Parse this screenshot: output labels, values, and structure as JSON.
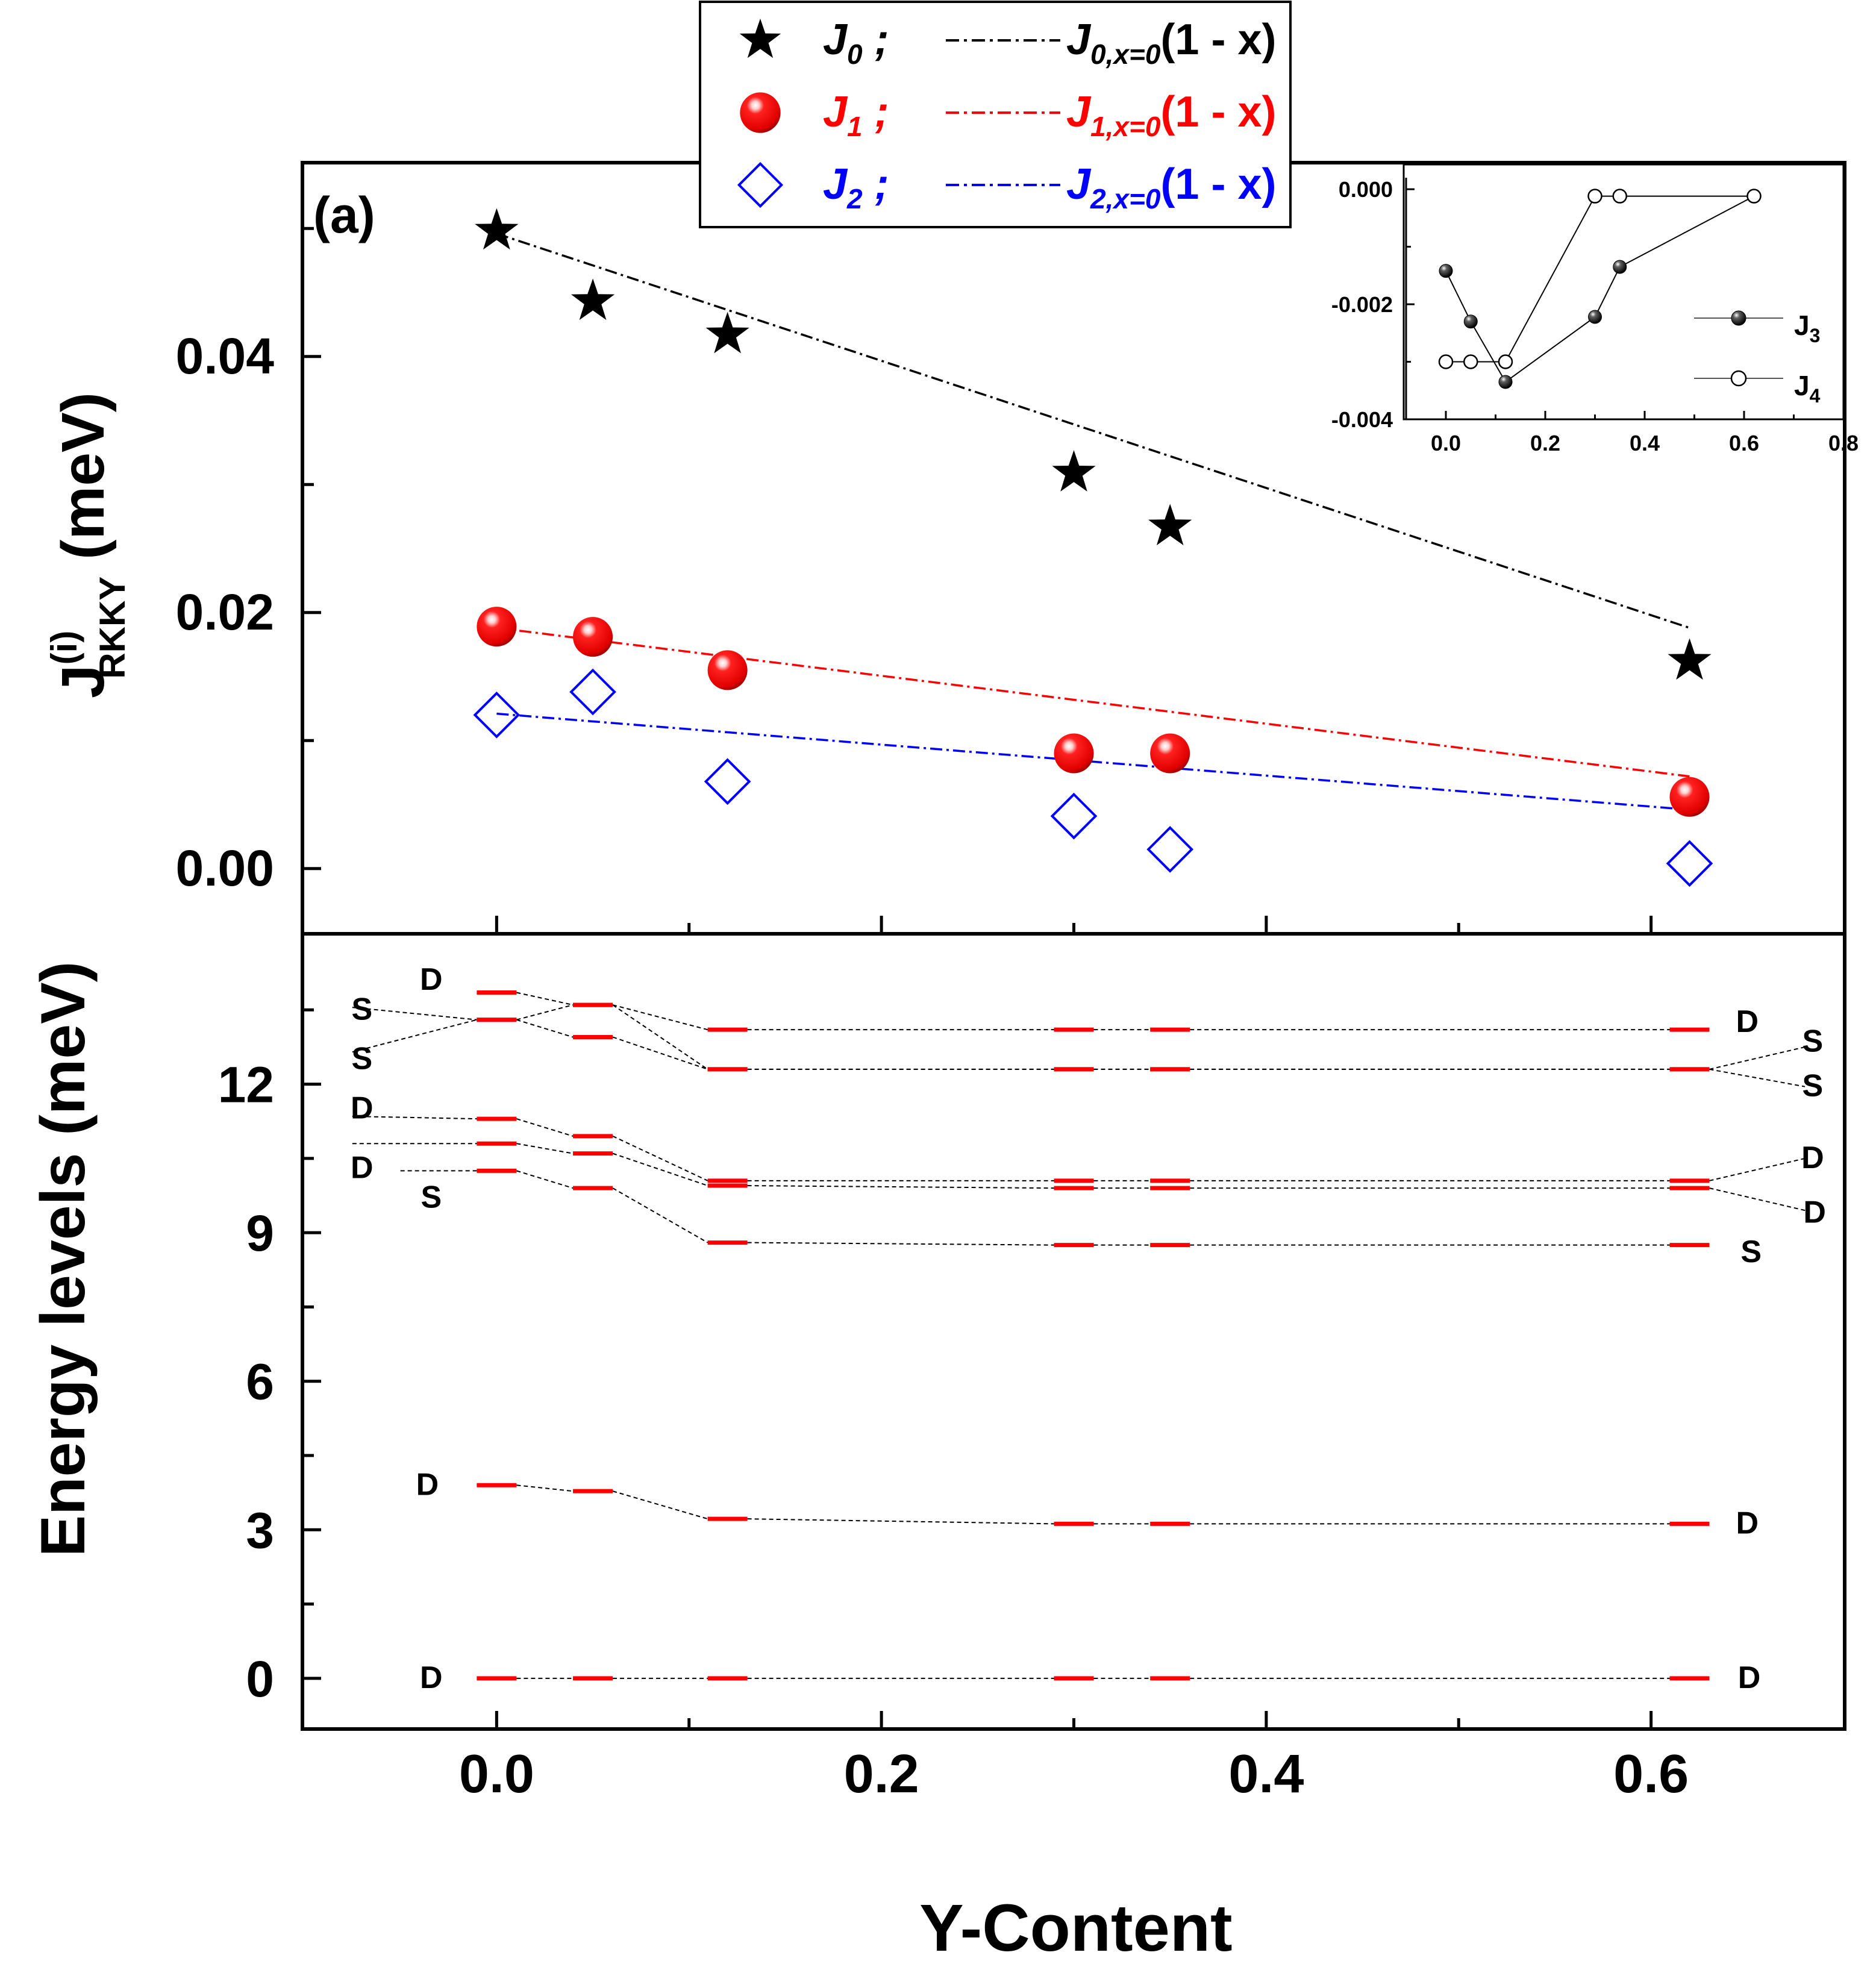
{
  "chart_data": [
    {
      "type": "scatter",
      "panel_label": "(a)",
      "title": "",
      "xlabel": "Y-Content",
      "ylabel_main": "J",
      "ylabel_sup": "(i)",
      "ylabel_sub": "RKKY",
      "ylabel_unit": " (meV)",
      "xlim": [
        -0.1,
        0.7
      ],
      "ylim": [
        -0.005,
        0.055
      ],
      "xticks": [
        0.0,
        0.2,
        0.4,
        0.6
      ],
      "yticks": [
        0.0,
        0.02,
        0.04
      ],
      "ytick_labels": [
        "0.00",
        "0.02",
        "0.04"
      ],
      "x": [
        0.0,
        0.05,
        0.12,
        0.3,
        0.35,
        0.62
      ],
      "series": [
        {
          "name": "J",
          "sub": "0",
          "marker": "star",
          "color": "#000000",
          "values": [
            0.0498,
            0.0443,
            0.0417,
            0.0309,
            0.0267,
            0.0162
          ]
        },
        {
          "name": "J",
          "sub": "1",
          "marker": "sphere",
          "color": "#ff0000",
          "values": [
            0.0189,
            0.0181,
            0.0155,
            0.009,
            0.009,
            0.0056
          ]
        },
        {
          "name": "J",
          "sub": "2",
          "marker": "diamond",
          "color": "#0000ff",
          "values": [
            0.012,
            0.0138,
            0.0068,
            0.0041,
            0.0015,
            0.0004
          ]
        }
      ],
      "fits": [
        {
          "series": 0,
          "x_range": [
            0.0,
            0.62
          ],
          "values": [
            0.0496,
            0.0188
          ],
          "color": "#000000"
        },
        {
          "series": 1,
          "x_range": [
            0.0,
            0.62
          ],
          "values": [
            0.0188,
            0.0072
          ],
          "color": "#ff0000"
        },
        {
          "series": 2,
          "x_range": [
            0.0,
            0.62
          ],
          "values": [
            0.0121,
            0.0046
          ],
          "color": "#0000ff"
        }
      ],
      "legend": {
        "placement": "top-center",
        "entries": [
          {
            "marker_label": "J",
            "marker_sub": "0",
            "separator": ";",
            "fit_label": "J",
            "fit_sub": "0,x=0",
            "fit_tail": "(1 - x)",
            "color": "#000000"
          },
          {
            "marker_label": "J",
            "marker_sub": "1",
            "separator": ";",
            "fit_label": "J",
            "fit_sub": "1,x=0",
            "fit_tail": "(1 - x)",
            "color": "#ff0000"
          },
          {
            "marker_label": "J",
            "marker_sub": "2",
            "separator": ";",
            "fit_label": "J",
            "fit_sub": "2,x=0",
            "fit_tail": "(1 - x)",
            "color": "#0000ff"
          }
        ]
      }
    },
    {
      "type": "line",
      "role": "inset",
      "xlim": [
        -0.08,
        0.8
      ],
      "ylim": [
        -0.004,
        0.0002
      ],
      "xticks": [
        0.0,
        0.2,
        0.4,
        0.6,
        0.8
      ],
      "xtick_labels": [
        "0.0",
        "0.2",
        "0.4",
        "0.6",
        "0.8"
      ],
      "yticks": [
        0.0,
        -0.002,
        -0.004
      ],
      "ytick_labels": [
        "0.000",
        "-0.002",
        "-0.004"
      ],
      "series": [
        {
          "name": "J",
          "sub": "3",
          "marker": "filled-circle",
          "x": [
            0.0,
            0.05,
            0.12,
            0.3,
            0.35,
            0.62
          ],
          "values": [
            -0.00142,
            -0.0023,
            -0.00335,
            -0.00222,
            -0.00135,
            -0.00012
          ]
        },
        {
          "name": "J",
          "sub": "4",
          "marker": "open-circle",
          "x": [
            0.0,
            0.05,
            0.12,
            0.3,
            0.35,
            0.62
          ],
          "values": [
            -0.003,
            -0.003,
            -0.003,
            -0.00012,
            -0.00012,
            -0.00012
          ]
        }
      ],
      "legend": {
        "placement": "right"
      }
    },
    {
      "type": "levels",
      "ylabel": "Energy levels (meV)",
      "xlabel": "Y-Content",
      "xlim": [
        -0.1,
        0.7
      ],
      "ylim": [
        -1.0,
        15.0
      ],
      "yticks": [
        0,
        3,
        6,
        9,
        12
      ],
      "ytick_labels": [
        "0",
        "3",
        "6",
        "9",
        "12"
      ],
      "xtick_labels": [
        "0.0",
        "0.2",
        "0.4",
        "0.6"
      ],
      "x": [
        0.0,
        0.05,
        0.12,
        0.3,
        0.35,
        0.62
      ],
      "level_color": "#ff0000",
      "levels": [
        [
          0.0,
          0.0,
          0.0,
          0.0,
          0.0,
          0.0
        ],
        [
          3.9,
          3.78,
          3.22,
          3.12,
          3.12,
          3.12
        ],
        [
          10.25,
          9.9,
          8.8,
          8.75,
          8.75,
          8.75
        ],
        [
          10.8,
          10.6,
          9.95,
          9.9,
          9.9,
          9.9
        ],
        [
          11.3,
          10.95,
          10.05,
          10.05,
          10.05,
          10.05
        ],
        [
          13.3,
          12.95,
          12.3,
          12.3,
          12.3,
          12.3
        ],
        [
          13.3,
          13.6,
          12.3,
          12.3,
          12.3,
          12.3
        ],
        [
          13.85,
          13.6,
          13.1,
          13.1,
          13.1,
          13.1
        ]
      ],
      "annotations": [
        {
          "text": "D",
          "x": -0.034,
          "y": 0.0
        },
        {
          "text": "D",
          "x": -0.036,
          "y": 3.9
        },
        {
          "text": "S",
          "x": -0.034,
          "y": 9.7
        },
        {
          "text": "D",
          "x": -0.07,
          "y": 10.3
        },
        {
          "text": "D",
          "x": -0.07,
          "y": 11.5
        },
        {
          "text": "S",
          "x": -0.07,
          "y": 12.5
        },
        {
          "text": "S",
          "x": -0.07,
          "y": 13.5
        },
        {
          "text": "D",
          "x": -0.034,
          "y": 14.1
        },
        {
          "text": "D",
          "x": 0.651,
          "y": 0.0
        },
        {
          "text": "D",
          "x": 0.65,
          "y": 3.12
        },
        {
          "text": "S",
          "x": 0.652,
          "y": 8.6
        },
        {
          "text": "D",
          "x": 0.685,
          "y": 9.4
        },
        {
          "text": "D",
          "x": 0.684,
          "y": 10.5
        },
        {
          "text": "S",
          "x": 0.684,
          "y": 11.95
        },
        {
          "text": "S",
          "x": 0.684,
          "y": 12.85
        },
        {
          "text": "D",
          "x": 0.65,
          "y": 13.25
        }
      ]
    }
  ]
}
